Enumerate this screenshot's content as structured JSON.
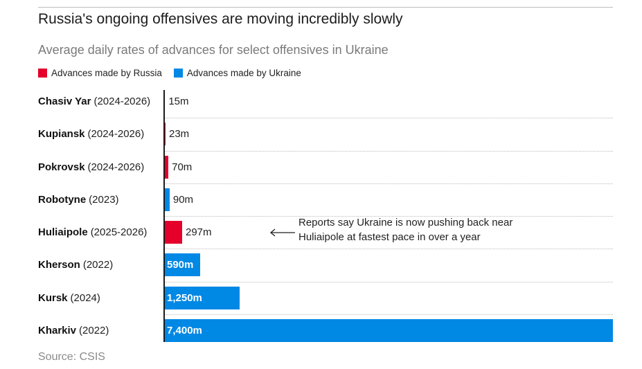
{
  "chart_data": {
    "type": "bar",
    "title": "Russia's ongoing offensives are moving incredibly slowly",
    "subtitle": "Average daily rates of advances for select offensives in Ukraine",
    "xlim": [
      0,
      7400
    ],
    "grid": false,
    "legend": "top-left",
    "series": [
      {
        "name": "Advances made by Russia",
        "color": "#e4002b"
      },
      {
        "name": "Advances made by Ukraine",
        "color": "#0088e5"
      }
    ],
    "rows": [
      {
        "name": "Chasiv Yar",
        "period": "(2024-2026)",
        "value": 15,
        "label": "15m",
        "series": 0
      },
      {
        "name": "Kupiansk",
        "period": "(2024-2026)",
        "value": 23,
        "label": "23m",
        "series": 0
      },
      {
        "name": "Pokrovsk",
        "period": "(2024-2026)",
        "value": 70,
        "label": "70m",
        "series": 0
      },
      {
        "name": "Robotyne",
        "period": "(2023)",
        "value": 90,
        "label": "90m",
        "series": 1
      },
      {
        "name": "Huliaipole",
        "period": "(2025-2026)",
        "value": 297,
        "label": "297m",
        "series": 0
      },
      {
        "name": "Kherson",
        "period": "(2022)",
        "value": 590,
        "label": "590m",
        "series": 1
      },
      {
        "name": "Kursk",
        "period": "(2024)",
        "value": 1250,
        "label": "1,250m",
        "series": 1
      },
      {
        "name": "Kharkiv",
        "period": "(2022)",
        "value": 7400,
        "label": "7,400m",
        "series": 1
      }
    ],
    "annotation": {
      "row_index": 4,
      "lines": [
        "Reports say Ukraine is now pushing back near",
        "Huliaipole at fastest pace in over a year"
      ]
    },
    "source": "Source: CSIS"
  }
}
